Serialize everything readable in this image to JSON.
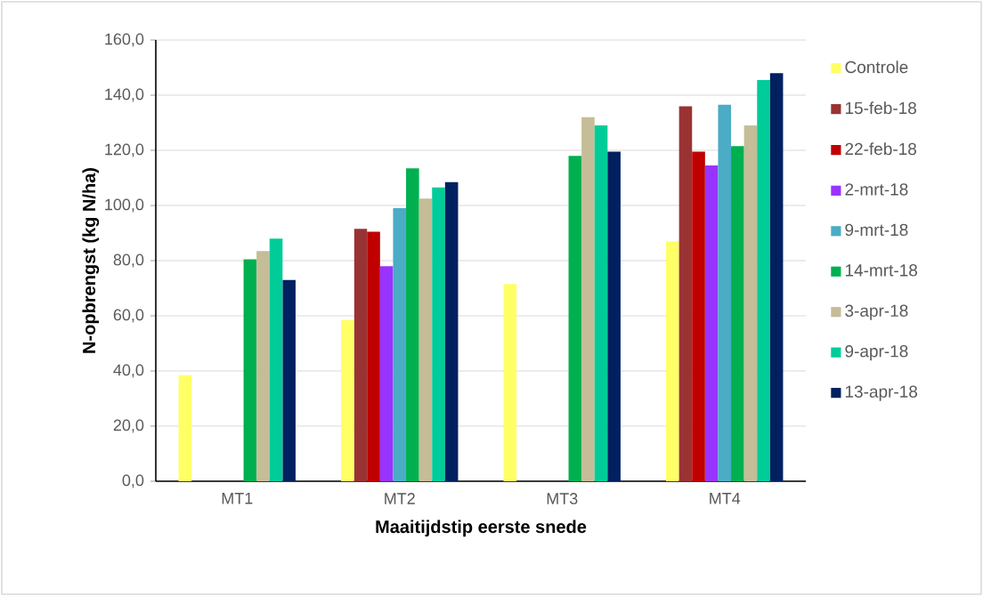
{
  "chart_data": {
    "type": "bar",
    "xlabel": "Maaitijdstip  eerste snede",
    "ylabel": "N-opbrengst  (kg N/ha)",
    "categories": [
      "MT1",
      "MT2",
      "MT3",
      "MT4"
    ],
    "series": [
      {
        "name": "Controle",
        "color": "#ffff66",
        "values": [
          38.5,
          58.5,
          71.5,
          87
        ]
      },
      {
        "name": "15-feb-18",
        "color": "#993333",
        "values": [
          null,
          91.5,
          null,
          136
        ]
      },
      {
        "name": "22-feb-18",
        "color": "#c00000",
        "values": [
          null,
          90.5,
          null,
          119.5
        ]
      },
      {
        "name": "2-mrt-18",
        "color": "#9933ff",
        "values": [
          null,
          78,
          null,
          114.5
        ]
      },
      {
        "name": "9-mrt-18",
        "color": "#4bacc6",
        "values": [
          null,
          99,
          null,
          136.5
        ]
      },
      {
        "name": "14-mrt-18",
        "color": "#00b050",
        "values": [
          80.5,
          113.5,
          118,
          121.5
        ]
      },
      {
        "name": "3-apr-18",
        "color": "#c4bd97",
        "values": [
          83.5,
          102.5,
          132,
          129
        ]
      },
      {
        "name": "9-apr-18",
        "color": "#00cc99",
        "values": [
          88,
          106.5,
          129,
          145.5
        ]
      },
      {
        "name": "13-apr-18",
        "color": "#002060",
        "values": [
          73,
          108.5,
          119.5,
          148
        ]
      }
    ],
    "ylim": [
      0,
      160
    ],
    "yticks": [
      {
        "value": 0,
        "label": "0,0"
      },
      {
        "value": 20,
        "label": "20,0"
      },
      {
        "value": 40,
        "label": "40,0"
      },
      {
        "value": 60,
        "label": "60,0"
      },
      {
        "value": 80,
        "label": "80,0"
      },
      {
        "value": 100,
        "label": "100,0"
      },
      {
        "value": 120,
        "label": "120,0"
      },
      {
        "value": 140,
        "label": "140,0"
      },
      {
        "value": 160,
        "label": "160,0"
      }
    ],
    "grid": "y",
    "legend": "right"
  }
}
